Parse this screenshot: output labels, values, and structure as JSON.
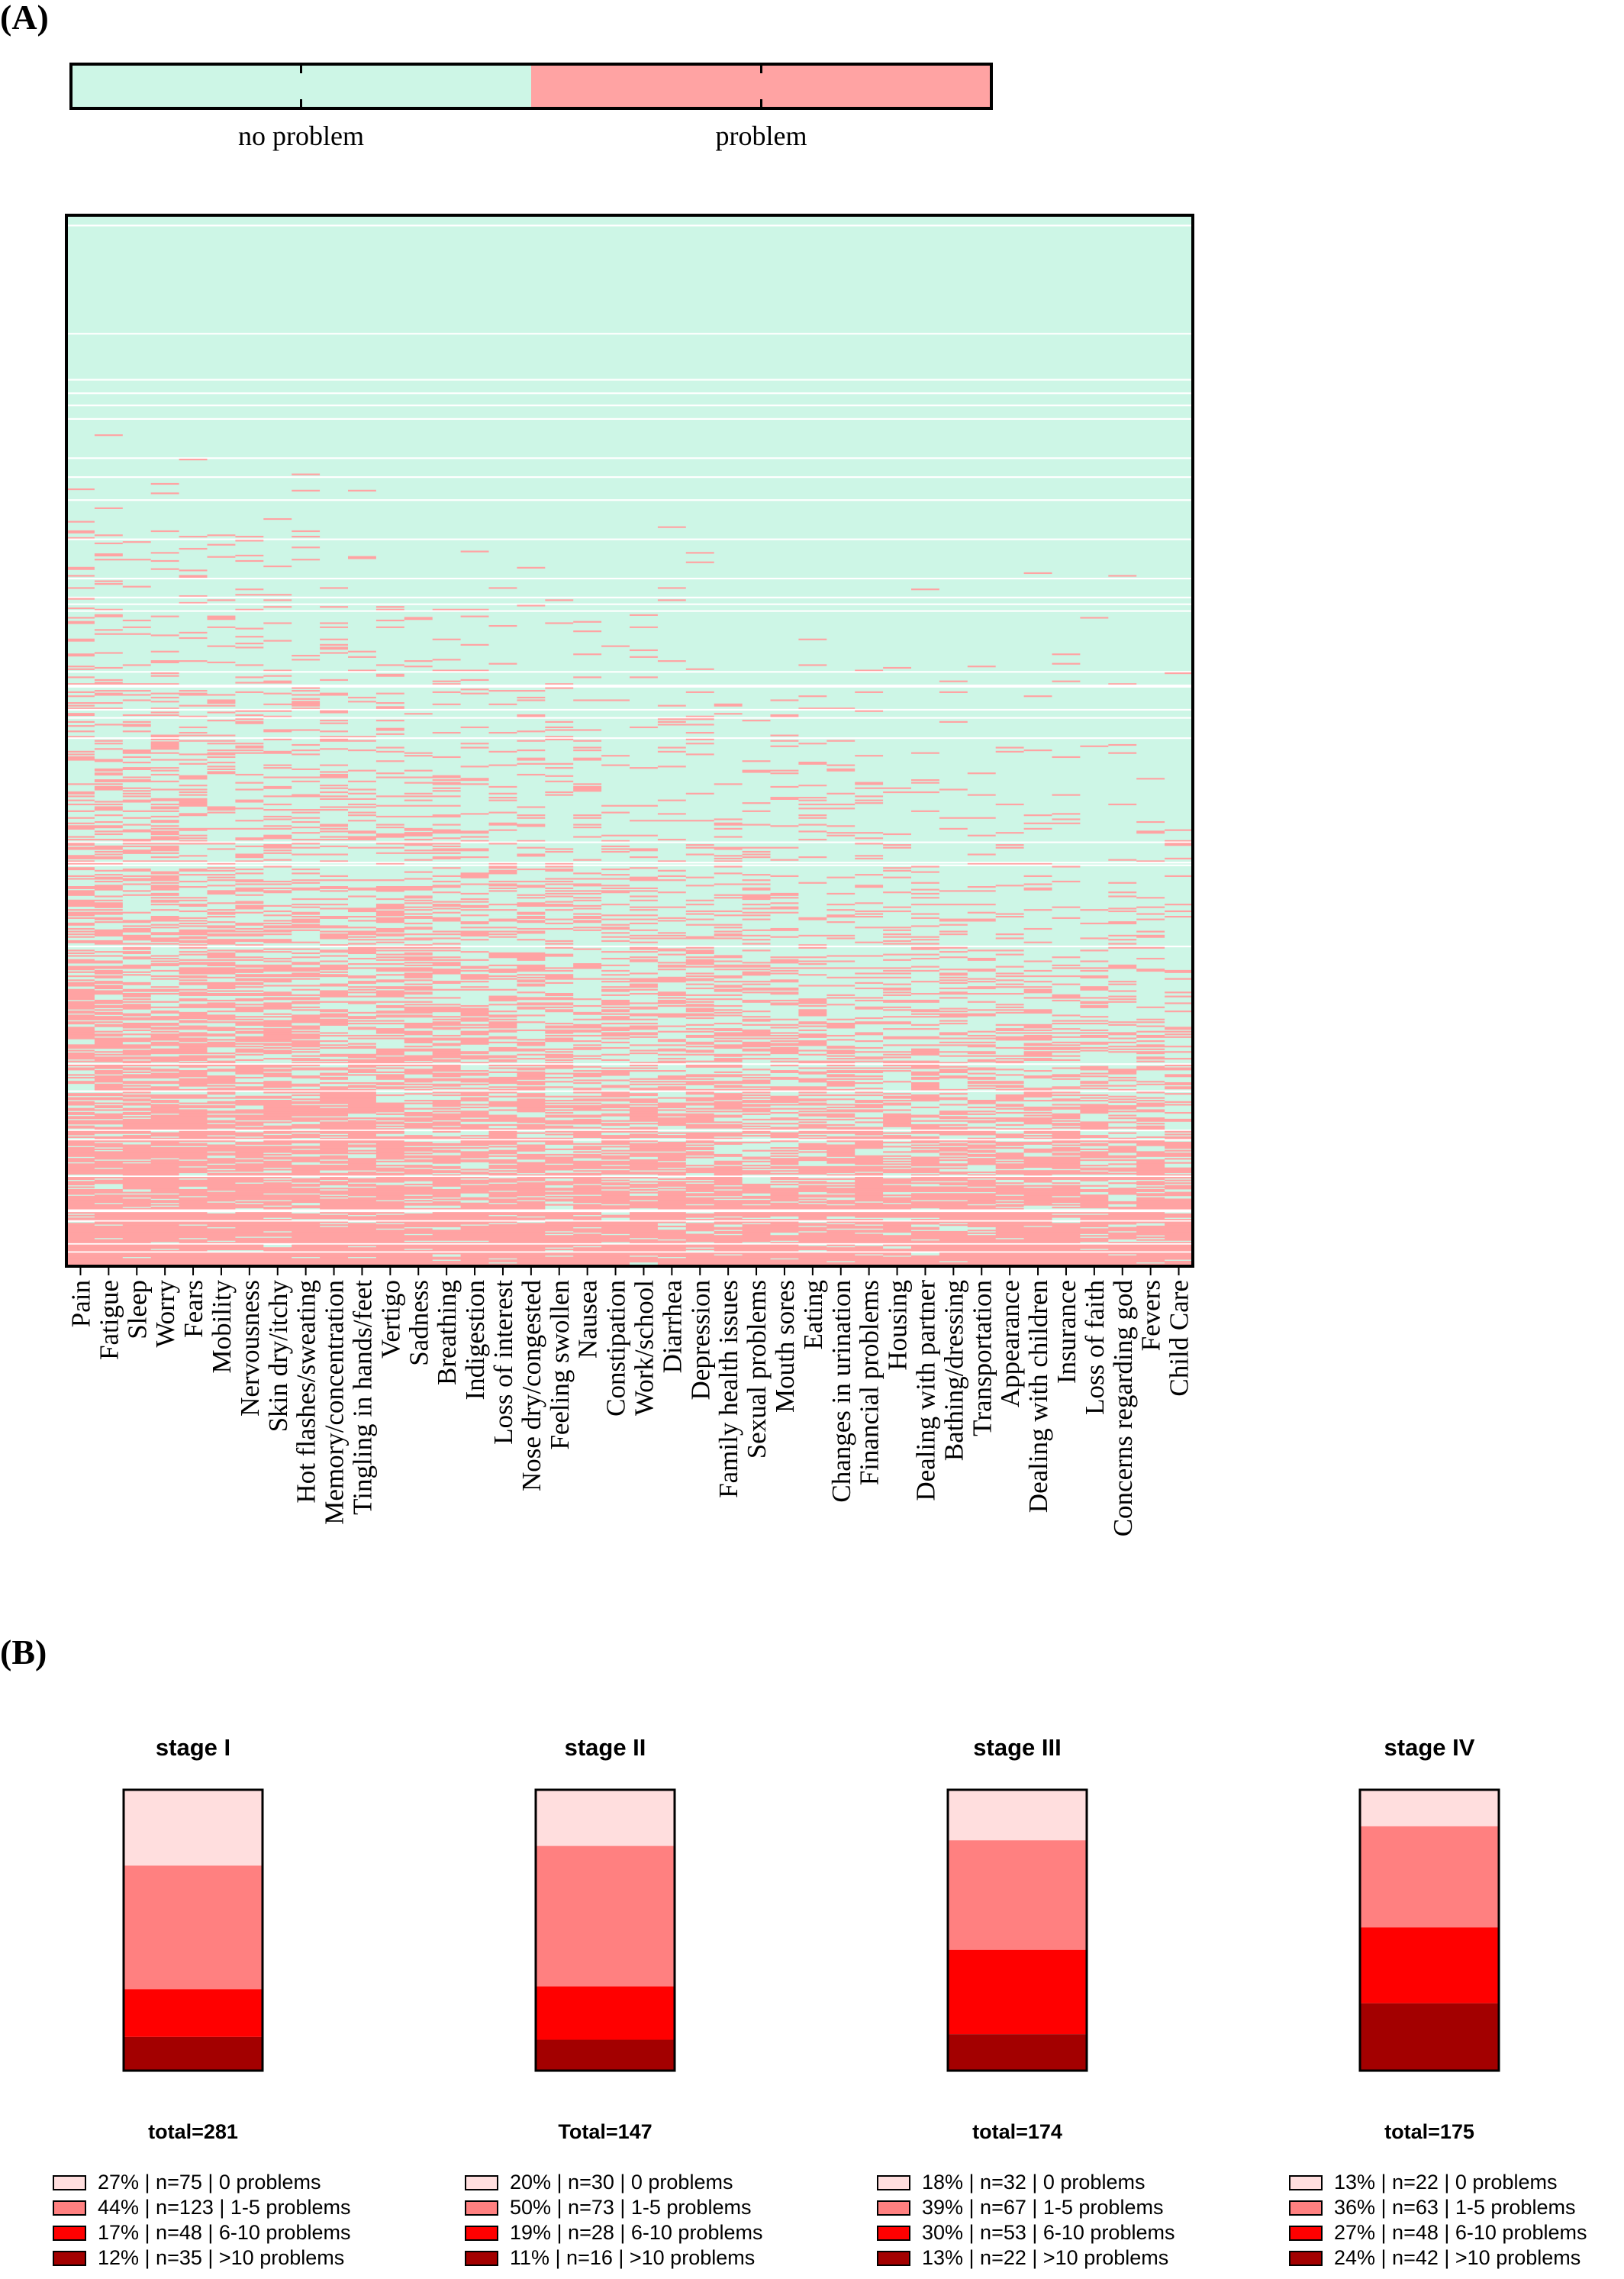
{
  "panel_a_label": "(A)",
  "panel_b_label": "(B)",
  "colors": {
    "no_problem": "#cdf6e6",
    "problem": "#ffa3a3",
    "gap": "#ffffff",
    "stack": [
      "#ffdede",
      "#ff8080",
      "#ff0000",
      "#a30000"
    ]
  },
  "chart_data": [
    {
      "type": "heatmap",
      "title": "",
      "legend": {
        "categories": [
          "no problem",
          "problem"
        ]
      },
      "rows": 777,
      "row_order": "sorted by number of problems, fewest at top",
      "columns": [
        "Pain",
        "Fatigue",
        "Sleep",
        "Worry",
        "Fears",
        "Mobility",
        "Nervousness",
        "Skin dry/itchy",
        "Hot flashes/sweating",
        "Memory/concentration",
        "Tingling in hands/feet",
        "Vertigo",
        "Sadness",
        "Breathing",
        "Indigestion",
        "Loss of interest",
        "Nose dry/congested",
        "Feeling swollen",
        "Nausea",
        "Constipation",
        "Work/school",
        "Diarrhea",
        "Depression",
        "Family health issues",
        "Sexual problems",
        "Mouth sores",
        "Eating",
        "Changes in urination",
        "Financial problems",
        "Housing",
        "Dealing with partner",
        "Bathing/dressing",
        "Transportation",
        "Appearance",
        "Dealing with children",
        "Insurance",
        "Loss of faith",
        "Concerns regarding god",
        "Fevers",
        "Child Care"
      ]
    },
    {
      "type": "bar",
      "subtype": "stacked-100",
      "categories": [
        "0 problems",
        "1-5 problems",
        "6-10 problems",
        ">10 problems"
      ],
      "panels": [
        {
          "title": "stage I",
          "total_label": "total=281",
          "segments": [
            {
              "pct": 27,
              "n": 75,
              "label": "27% | n=75 | 0 problems"
            },
            {
              "pct": 44,
              "n": 123,
              "label": "44% | n=123 | 1-5 problems"
            },
            {
              "pct": 17,
              "n": 48,
              "label": "17% | n=48 | 6-10 problems"
            },
            {
              "pct": 12,
              "n": 35,
              "label": "12% | n=35 | >10 problems"
            }
          ]
        },
        {
          "title": "stage II",
          "total_label": "Total=147",
          "segments": [
            {
              "pct": 20,
              "n": 30,
              "label": "20% | n=30 | 0 problems"
            },
            {
              "pct": 50,
              "n": 73,
              "label": "50% | n=73 | 1-5 problems"
            },
            {
              "pct": 19,
              "n": 28,
              "label": "19% | n=28 | 6-10 problems"
            },
            {
              "pct": 11,
              "n": 16,
              "label": "11% | n=16 | >10 problems"
            }
          ]
        },
        {
          "title": "stage III",
          "total_label": "total=174",
          "segments": [
            {
              "pct": 18,
              "n": 32,
              "label": "18% | n=32 | 0 problems"
            },
            {
              "pct": 39,
              "n": 67,
              "label": "39% | n=67 | 1-5 problems"
            },
            {
              "pct": 30,
              "n": 53,
              "label": "30% | n=53 | 6-10 problems"
            },
            {
              "pct": 13,
              "n": 22,
              "label": "13% | n=22 | >10 problems"
            }
          ]
        },
        {
          "title": "stage IV",
          "total_label": "total=175",
          "segments": [
            {
              "pct": 13,
              "n": 22,
              "label": "13% | n=22 | 0 problems"
            },
            {
              "pct": 36,
              "n": 63,
              "label": "36% | n=63 | 1-5 problems"
            },
            {
              "pct": 27,
              "n": 48,
              "label": "27% | n=48 | 6-10 problems"
            },
            {
              "pct": 24,
              "n": 42,
              "label": "24% | n=42 | >10 problems"
            }
          ]
        }
      ]
    }
  ]
}
